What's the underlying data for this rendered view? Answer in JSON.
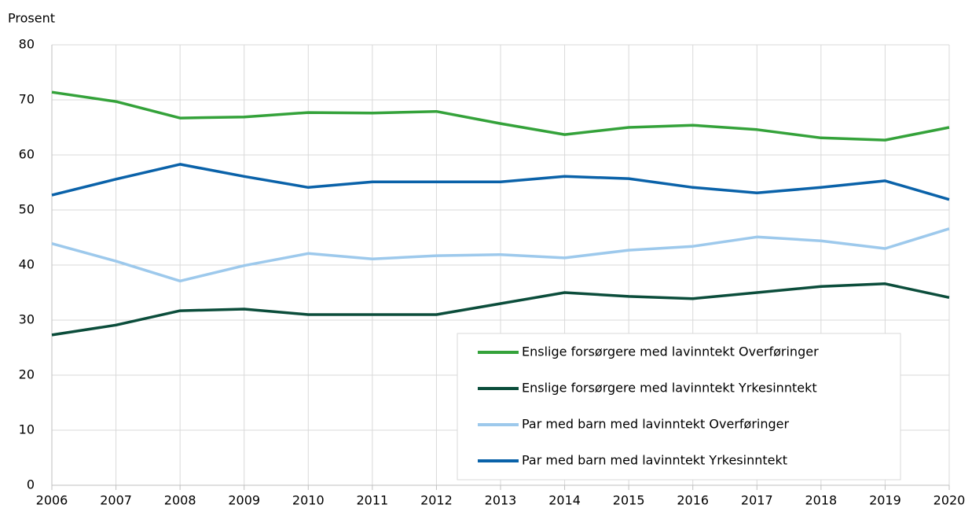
{
  "chart_data": {
    "type": "line",
    "y_axis_label": "Prosent",
    "categories": [
      "2006",
      "2007",
      "2008",
      "2009",
      "2010",
      "2011",
      "2012",
      "2013",
      "2014",
      "2015",
      "2016",
      "2017",
      "2018",
      "2019",
      "2020"
    ],
    "series": [
      {
        "name": "Enslige forsørgere med lavinntekt Overføringer",
        "color": "#34a23a",
        "values": [
          71.4,
          69.7,
          66.7,
          66.9,
          67.7,
          67.6,
          67.9,
          65.7,
          63.7,
          65.0,
          65.4,
          64.6,
          63.1,
          62.7,
          65.0
        ]
      },
      {
        "name": "Enslige forsørgere med lavinntekt Yrkesinntekt",
        "color": "#0b4d3b",
        "values": [
          27.3,
          29.1,
          31.7,
          32.0,
          31.0,
          31.0,
          31.0,
          33.0,
          35.0,
          34.3,
          33.9,
          35.0,
          36.1,
          36.6,
          34.1
        ]
      },
      {
        "name": "Par med barn med lavinntekt Overføringer",
        "color": "#9dc9ec",
        "values": [
          43.9,
          40.7,
          37.1,
          39.9,
          42.1,
          41.1,
          41.7,
          41.9,
          41.3,
          42.7,
          43.4,
          45.1,
          44.4,
          43.0,
          46.6
        ]
      },
      {
        "name": "Par med barn med lavinntekt Yrkesinntekt",
        "color": "#0a62a9",
        "values": [
          52.7,
          55.6,
          58.3,
          56.1,
          54.1,
          55.1,
          55.1,
          55.1,
          56.1,
          55.7,
          54.1,
          53.1,
          54.1,
          55.3,
          51.9
        ]
      }
    ],
    "ylim": [
      0,
      80
    ],
    "yticks": [
      0,
      10,
      20,
      30,
      40,
      50,
      60,
      70,
      80
    ],
    "grid": true
  }
}
